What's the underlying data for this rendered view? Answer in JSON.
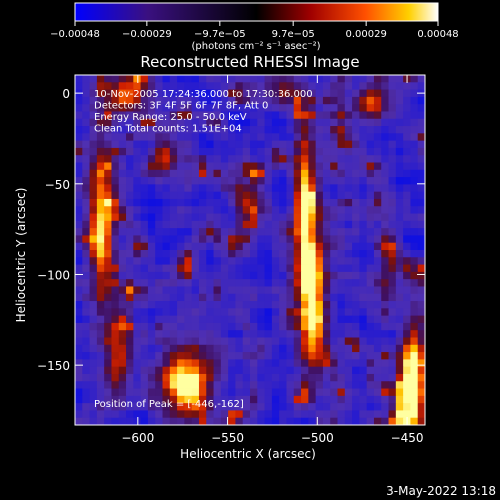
{
  "chart_data": {
    "type": "heatmap",
    "title": "Reconstructed RHESSI Image",
    "xlabel": "Heliocentric X (arcsec)",
    "ylabel": "Heliocentric Y (arcsec)",
    "xlim": [
      -635,
      -440
    ],
    "ylim": [
      -183,
      10
    ],
    "xticks": [
      -600,
      -550,
      -500,
      -450
    ],
    "yticks": [
      -150,
      -100,
      -50,
      0
    ],
    "x_tick_labels": [
      "−600",
      "−550",
      "−500",
      "−450"
    ],
    "y_tick_labels": [
      "−150",
      "−100",
      "−50",
      "0"
    ],
    "colorbar": {
      "range": [
        -0.00048,
        0.00048
      ],
      "ticks": [
        -0.00048,
        -0.00029,
        -9.7e-05,
        9.7e-05,
        0.00029,
        0.00048
      ],
      "tick_labels": [
        "−0.00048",
        "−0.00029",
        "−9.7e−05",
        "9.7e−05",
        "0.00029",
        "0.00048"
      ],
      "unit_label": "(photons cm⁻² s⁻¹ asec⁻²)",
      "colormap": [
        "#0000ff",
        "#5a2fc8",
        "#3a1050",
        "#000000",
        "#8a0000",
        "#ff3000",
        "#ffa500",
        "#ffff00",
        "#ffffff"
      ]
    },
    "annotations": [
      "10-Nov-2005 17:24:36.000 to 17:30:36.000",
      "Detectors: 3F 4F 5F 6F 7F 8F, Att 0",
      "Energy Range: 25.0 - 50.0 keV",
      "Clean     Total counts: 1.51E+04"
    ],
    "peak_label": "Position of Peak = [-446,-162]",
    "peak": [
      -446,
      -162
    ],
    "grid": false
  },
  "footer": {
    "date": "3-May-2022 13:18"
  }
}
